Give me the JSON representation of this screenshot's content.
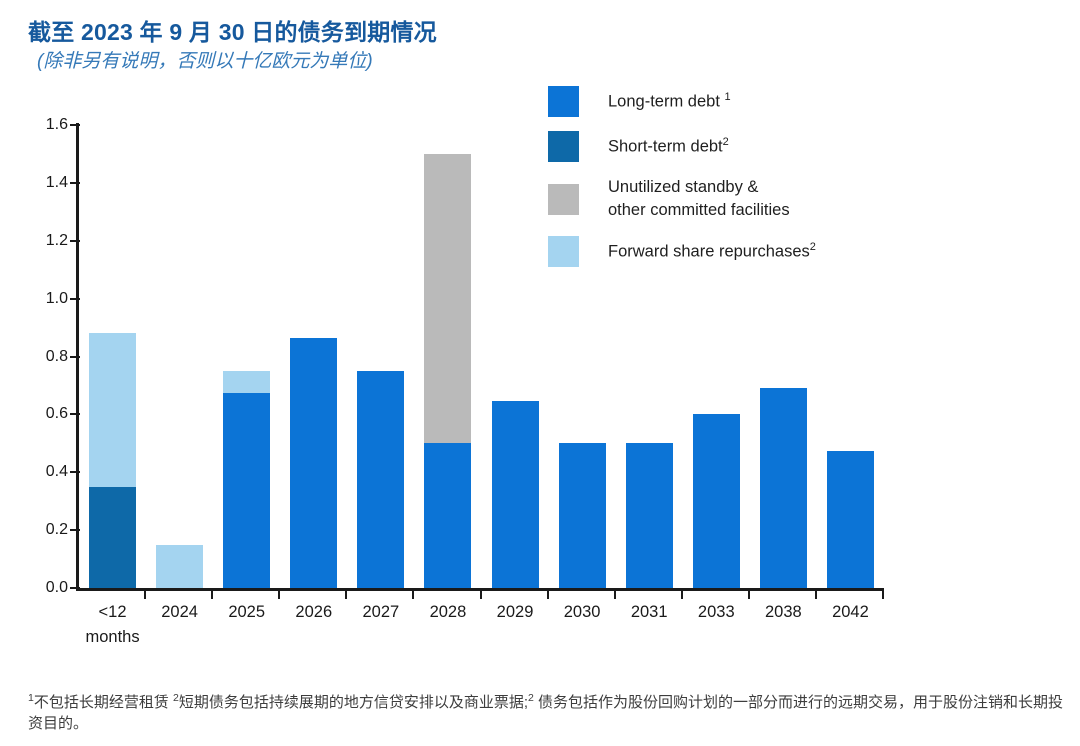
{
  "page": {
    "title": "截至 2023 年 9 月 30 日的债务到期情况",
    "subtitle": "(除非另有说明，否则以十亿欧元为单位)"
  },
  "colors": {
    "long_term": "#0c74d6",
    "short_term": "#0e69a8",
    "unutilized": "#bababa",
    "forward": "#a4d4f0",
    "title": "#16599d",
    "subtitle": "#3579b8",
    "axis": "#1a1a1a"
  },
  "legend": [
    {
      "label": "Long-term debt ",
      "sup": "1",
      "color_key": "long_term"
    },
    {
      "label": "Short-term debt",
      "sup": "2",
      "color_key": "short_term"
    },
    {
      "label": "Unutilized standby &\nother committed facilities",
      "sup": "",
      "color_key": "unutilized"
    },
    {
      "label": "Forward share repurchases",
      "sup": "2",
      "color_key": "forward"
    }
  ],
  "chart_data": {
    "type": "bar",
    "stacked": true,
    "title": "截至 2023 年 9 月 30 日的债务到期情况",
    "unit": "十亿欧元 (EUR billions)",
    "categories": [
      "<12\nmonths",
      "2024",
      "2025",
      "2026",
      "2027",
      "2028",
      "2029",
      "2030",
      "2031",
      "2033",
      "2038",
      "2042"
    ],
    "ylim": [
      0,
      1.6
    ],
    "yticks": [
      "0.0",
      "0.2",
      "0.4",
      "0.6",
      "0.8",
      "1.0",
      "1.2",
      "1.4",
      "1.6"
    ],
    "grid": false,
    "legend_position": "top-right",
    "series": [
      {
        "name": "Short-term debt",
        "color_key": "short_term",
        "values": [
          0.35,
          0,
          0,
          0,
          0,
          0,
          0,
          0,
          0,
          0,
          0,
          0
        ]
      },
      {
        "name": "Long-term debt",
        "color_key": "long_term",
        "values": [
          0,
          0,
          0.675,
          0.865,
          0.75,
          0.5,
          0.645,
          0.5,
          0.5,
          0.6,
          0.69,
          0.475
        ]
      },
      {
        "name": "Unutilized standby & other committed facilities",
        "color_key": "unutilized",
        "values": [
          0,
          0,
          0,
          0,
          0,
          1.0,
          0,
          0,
          0,
          0,
          0,
          0
        ]
      },
      {
        "name": "Forward share repurchases",
        "color_key": "forward",
        "values": [
          0.53,
          0.15,
          0.075,
          0,
          0,
          0,
          0,
          0,
          0,
          0,
          0,
          0
        ]
      }
    ]
  },
  "footnote": {
    "parts": [
      {
        "sup": "1",
        "text": "不包括长期经营租赁 "
      },
      {
        "sup": "2",
        "text": "短期债务包括持续展期的地方信贷安排以及商业票据;"
      },
      {
        "sup": "2",
        "text": " 债务包括作为股份回购计划的一部分而进行的远期交易，用于股份注销和长期投资目的。"
      }
    ]
  }
}
